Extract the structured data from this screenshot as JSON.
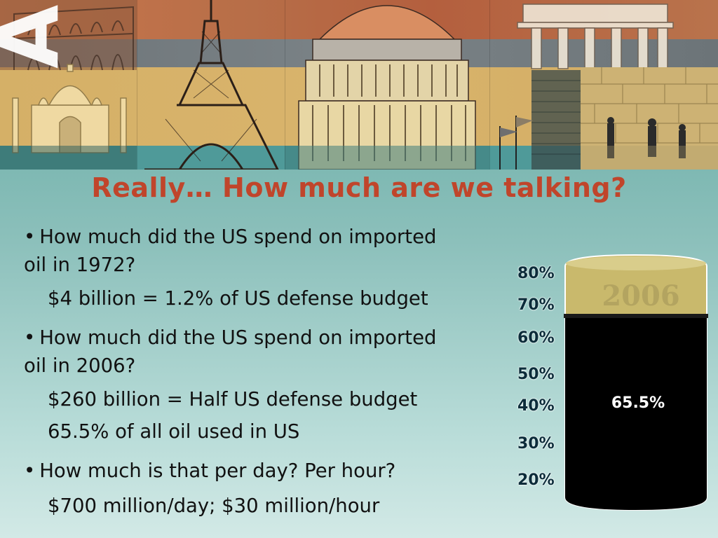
{
  "title": "Really… How much are we talking?",
  "banner": {
    "logo_text": "AIC",
    "panel_icons": [
      "colosseum-icon",
      "taj-mahal-icon",
      "eiffel-tower-icon",
      "capitol-dome-icon",
      "brandenburg-gate-icon",
      "skyscraper-flags-icon",
      "western-wall-icon"
    ]
  },
  "bullets": [
    {
      "question": "How much did the US spend on imported oil in 1972?",
      "question_line1": "How much did the US spend on imported",
      "question_line2": "oil in 1972?",
      "answers": [
        "$4 billion = 1.2% of US defense budget"
      ]
    },
    {
      "question_line1": "How much did the US spend on imported",
      "question_line2": "oil in 2006?",
      "answers": [
        "$260 billion = Half US defense budget",
        "65.5% of all oil used in US"
      ]
    },
    {
      "question_line1": "How much is that per day? Per hour?",
      "answers": [
        "$700 million/day; $30 million/hour"
      ]
    }
  ],
  "barrel": {
    "year": "2006",
    "fill_value": "65.5%",
    "fill_fraction": 0.655,
    "scale_labels": [
      "80%",
      "70%",
      "60%",
      "50%",
      "40%",
      "30%",
      "20%"
    ],
    "colors": {
      "oil": "#000000",
      "band": "#c8b86a",
      "bg": "#5fa7a0",
      "title": "#c0452b"
    }
  }
}
